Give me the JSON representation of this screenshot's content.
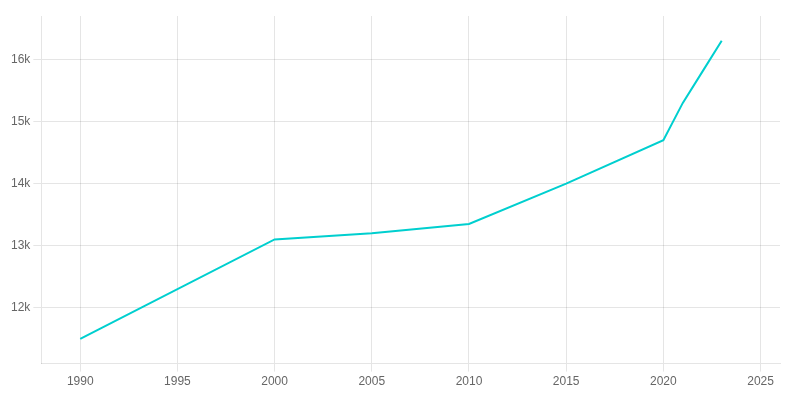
{
  "chart_data": {
    "type": "line",
    "x": [
      1990,
      2000,
      2005,
      2010,
      2015,
      2020,
      2021,
      2022,
      2023
    ],
    "values": [
      11500,
      13100,
      13200,
      13350,
      14000,
      14700,
      15300,
      15800,
      16300
    ],
    "color": "#00CFCF",
    "xlim": [
      1988,
      2026
    ],
    "ylim": [
      11100,
      16700
    ],
    "xticks": [
      1990,
      1995,
      2000,
      2005,
      2010,
      2015,
      2020,
      2025
    ],
    "yticks": [
      {
        "value": 12000,
        "label": "12k"
      },
      {
        "value": 13000,
        "label": "13k"
      },
      {
        "value": 14000,
        "label": "14k"
      },
      {
        "value": 15000,
        "label": "15k"
      },
      {
        "value": 16000,
        "label": "16k"
      }
    ],
    "grid": true
  }
}
